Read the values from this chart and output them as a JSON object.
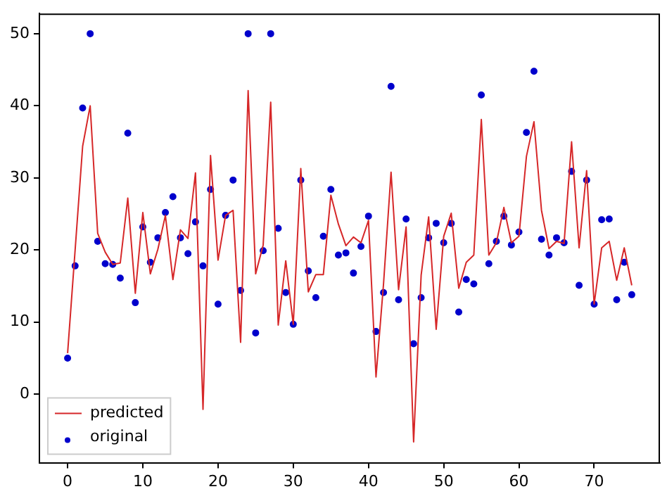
{
  "chart_data": {
    "type": "line",
    "x": [
      0,
      1,
      2,
      3,
      4,
      5,
      6,
      7,
      8,
      9,
      10,
      11,
      12,
      13,
      14,
      15,
      16,
      17,
      18,
      19,
      20,
      21,
      22,
      23,
      24,
      25,
      26,
      27,
      28,
      29,
      30,
      31,
      32,
      33,
      34,
      35,
      36,
      37,
      38,
      39,
      40,
      41,
      42,
      43,
      44,
      45,
      46,
      47,
      48,
      49,
      50,
      51,
      52,
      53,
      54,
      55,
      56,
      57,
      58,
      59,
      60,
      61,
      62,
      63,
      64,
      65,
      66,
      67,
      68,
      69,
      70,
      71,
      72,
      73,
      74,
      75
    ],
    "series": [
      {
        "name": "predicted",
        "color": "#d62728",
        "marker": "none",
        "values": [
          5.7,
          20,
          34.4,
          40,
          22.3,
          19.7,
          18,
          18.2,
          27.2,
          14,
          25.2,
          16.7,
          20.1,
          24.8,
          15.9,
          22.8,
          21.6,
          30.7,
          -2.1,
          33.1,
          18.6,
          24.8,
          25.5,
          7.2,
          42.1,
          16.7,
          20.7,
          40.5,
          9.6,
          18.5,
          9.7,
          31.3,
          14.2,
          16.6,
          16.6,
          27.6,
          23.6,
          20.6,
          21.8,
          21,
          24.1,
          2.4,
          15.3,
          30.8,
          14.5,
          23.2,
          -6.6,
          16.5,
          24.6,
          9,
          21.9,
          25.1,
          14.7,
          18.3,
          19.3,
          38.1,
          19.3,
          21,
          25.9,
          21,
          21.9,
          33,
          37.8,
          25.5,
          20.2,
          21.2,
          20.9,
          35,
          20.3,
          31,
          12.5,
          20.3,
          21.2,
          15.8,
          20.3,
          15.1
        ]
      },
      {
        "name": "original",
        "type": "scatter",
        "color": "#0000cc",
        "marker": "circle",
        "values": [
          5,
          17.8,
          39.7,
          50,
          21.2,
          18.1,
          18,
          16.1,
          36.2,
          12.7,
          23.2,
          18.3,
          21.7,
          25.2,
          27.4,
          21.7,
          19.5,
          23.9,
          17.8,
          28.4,
          12.5,
          24.8,
          29.7,
          14.4,
          50,
          8.5,
          19.9,
          50,
          23,
          14.1,
          9.7,
          29.7,
          17.1,
          13.4,
          21.9,
          28.4,
          19.3,
          19.6,
          16.8,
          20.5,
          24.7,
          8.7,
          14.1,
          42.7,
          13.1,
          24.3,
          7,
          13.4,
          21.7,
          23.7,
          21,
          23.7,
          11.4,
          15.9,
          15.3,
          41.5,
          18.1,
          21.2,
          24.7,
          20.7,
          22.5,
          36.3,
          44.8,
          21.5,
          19.3,
          21.7,
          21,
          30.9,
          15.1,
          29.7,
          12.5,
          24.2,
          24.3,
          13.1,
          18.3,
          13.8
        ]
      }
    ],
    "xlim": [
      -3.75,
      78.75
    ],
    "xticks": [
      0,
      10,
      20,
      30,
      40,
      50,
      60,
      70
    ],
    "ylim": [
      -9.5,
      52.8
    ],
    "yticks": [
      0,
      10,
      20,
      30,
      40,
      50
    ],
    "grid": false,
    "legend": "bottom left"
  }
}
